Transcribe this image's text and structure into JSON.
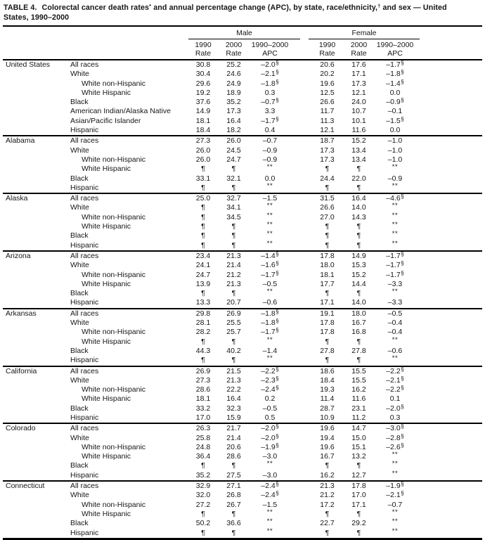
{
  "title": {
    "lines": [
      [
        {
          "t": "TABLE 4.",
          "label": true
        },
        {
          "t": "Colorectal cancer death rates"
        },
        {
          "t": "*",
          "sup": true
        },
        {
          "t": " and annual percentage change (APC), by state, race/ethnicity,"
        },
        {
          "t": "†",
          "sup": true
        },
        {
          "t": " and sex — United"
        }
      ],
      [
        {
          "t": "States, 1990–2000"
        }
      ]
    ]
  },
  "header": {
    "male": "Male",
    "female": "Female",
    "columns": [
      {
        "l1": "1990",
        "l2": "Rate"
      },
      {
        "l1": "2000",
        "l2": "Rate"
      },
      {
        "l1": "1990–2000",
        "l2": "APC"
      }
    ]
  },
  "symbols": {
    "suppressed_rate": "¶",
    "suppressed_apc": "**",
    "statistical_significance": "§"
  },
  "table": {
    "groups": [
      {
        "state": "United States",
        "rows": [
          {
            "label": "All races",
            "indent": 0,
            "values": [
              "30.8",
              "25.2",
              "–2.0§",
              "20.6",
              "17.6",
              "–1.7§"
            ]
          },
          {
            "label": "White",
            "indent": 0,
            "values": [
              "30.4",
              "24.6",
              "–2.1§",
              "20.2",
              "17.1",
              "–1.8§"
            ]
          },
          {
            "label": "White non-Hispanic",
            "indent": 1,
            "values": [
              "29.6",
              "24.9",
              "–1.8§",
              "19.6",
              "17.3",
              "–1.4§"
            ]
          },
          {
            "label": "White Hispanic",
            "indent": 1,
            "values": [
              "19.2",
              "18.9",
              "0.3",
              "12.5",
              "12.1",
              "0.0"
            ]
          },
          {
            "label": "Black",
            "indent": 0,
            "values": [
              "37.6",
              "35.2",
              "–0.7§",
              "26.6",
              "24.0",
              "–0.9§"
            ]
          },
          {
            "label": "American Indian/Alaska Native",
            "indent": 0,
            "values": [
              "14.9",
              "17.3",
              "3.3",
              "11.7",
              "10.7",
              "–0.1"
            ]
          },
          {
            "label": "Asian/Pacific Islander",
            "indent": 0,
            "values": [
              "18.1",
              "16.4",
              "–1.7§",
              "11.3",
              "10.1",
              "–1.5§"
            ]
          },
          {
            "label": "Hispanic",
            "indent": 0,
            "values": [
              "18.4",
              "18.2",
              "0.4",
              "12.1",
              "11.6",
              "0.0"
            ]
          }
        ]
      },
      {
        "state": "Alabama",
        "rows": [
          {
            "label": "All races",
            "indent": 0,
            "values": [
              "27.3",
              "26.0",
              "–0.7",
              "18.7",
              "15.2",
              "–1.0"
            ]
          },
          {
            "label": "White",
            "indent": 0,
            "values": [
              "26.0",
              "24.5",
              "–0.9",
              "17.3",
              "13.4",
              "–1.0"
            ]
          },
          {
            "label": "White non-Hispanic",
            "indent": 1,
            "values": [
              "26.0",
              "24.7",
              "–0.9",
              "17.3",
              "13.4",
              "–1.0"
            ]
          },
          {
            "label": "White Hispanic",
            "indent": 1,
            "values": [
              "¶",
              "¶",
              "**",
              "¶",
              "¶",
              "**"
            ]
          },
          {
            "label": "Black",
            "indent": 0,
            "values": [
              "33.1",
              "32.1",
              "0.0",
              "24.4",
              "22.0",
              "–0.9"
            ]
          },
          {
            "label": "Hispanic",
            "indent": 0,
            "values": [
              "¶",
              "¶",
              "**",
              "¶",
              "¶",
              "**"
            ]
          }
        ]
      },
      {
        "state": "Alaska",
        "rows": [
          {
            "label": "All races",
            "indent": 0,
            "values": [
              "25.0",
              "32.7",
              "–1.5",
              "31.5",
              "16.4",
              "–4.6§"
            ]
          },
          {
            "label": "White",
            "indent": 0,
            "values": [
              "¶",
              "34.1",
              "**",
              "26.6",
              "14.0",
              "**"
            ]
          },
          {
            "label": "White non-Hispanic",
            "indent": 1,
            "values": [
              "¶",
              "34.5",
              "**",
              "27.0",
              "14.3",
              "**"
            ]
          },
          {
            "label": "White Hispanic",
            "indent": 1,
            "values": [
              "¶",
              "¶",
              "**",
              "¶",
              "¶",
              "**"
            ]
          },
          {
            "label": "Black",
            "indent": 0,
            "values": [
              "¶",
              "¶",
              "**",
              "¶",
              "¶",
              "**"
            ]
          },
          {
            "label": "Hispanic",
            "indent": 0,
            "values": [
              "¶",
              "¶",
              "**",
              "¶",
              "¶",
              "**"
            ]
          }
        ]
      },
      {
        "state": "Arizona",
        "rows": [
          {
            "label": "All races",
            "indent": 0,
            "values": [
              "23.4",
              "21.3",
              "–1.4§",
              "17.8",
              "14.9",
              "–1.7§"
            ]
          },
          {
            "label": "White",
            "indent": 0,
            "values": [
              "24.1",
              "21.4",
              "–1.6§",
              "18.0",
              "15.3",
              "–1.7§"
            ]
          },
          {
            "label": "White non-Hispanic",
            "indent": 1,
            "values": [
              "24.7",
              "21.2",
              "–1.7§",
              "18.1",
              "15.2",
              "–1.7§"
            ]
          },
          {
            "label": "White Hispanic",
            "indent": 1,
            "values": [
              "13.9",
              "21.3",
              "–0.5",
              "17.7",
              "14.4",
              "–3.3"
            ]
          },
          {
            "label": "Black",
            "indent": 0,
            "values": [
              "¶",
              "¶",
              "**",
              "¶",
              "¶",
              "**"
            ]
          },
          {
            "label": "Hispanic",
            "indent": 0,
            "values": [
              "13.3",
              "20.7",
              "–0.6",
              "17.1",
              "14.0",
              "–3.3"
            ]
          }
        ]
      },
      {
        "state": "Arkansas",
        "rows": [
          {
            "label": "All races",
            "indent": 0,
            "values": [
              "29.8",
              "26.9",
              "–1.8§",
              "19.1",
              "18.0",
              "–0.5"
            ]
          },
          {
            "label": "White",
            "indent": 0,
            "values": [
              "28.1",
              "25.5",
              "–1.8§",
              "17.8",
              "16.7",
              "–0.4"
            ]
          },
          {
            "label": "White non-Hispanic",
            "indent": 1,
            "values": [
              "28.2",
              "25.7",
              "–1.7§",
              "17.8",
              "16.8",
              "–0.4"
            ]
          },
          {
            "label": "White Hispanic",
            "indent": 1,
            "values": [
              "¶",
              "¶",
              "**",
              "¶",
              "¶",
              "**"
            ]
          },
          {
            "label": "Black",
            "indent": 0,
            "values": [
              "44.3",
              "40.2",
              "–1.4",
              "27.8",
              "27.8",
              "–0.6"
            ]
          },
          {
            "label": "Hispanic",
            "indent": 0,
            "values": [
              "¶",
              "¶",
              "**",
              "¶",
              "¶",
              "**"
            ]
          }
        ]
      },
      {
        "state": "California",
        "rows": [
          {
            "label": "All races",
            "indent": 0,
            "values": [
              "26.9",
              "21.5",
              "–2.2§",
              "18.6",
              "15.5",
              "–2.2§"
            ]
          },
          {
            "label": "White",
            "indent": 0,
            "values": [
              "27.3",
              "21.3",
              "–2.3§",
              "18.4",
              "15.5",
              "–2.1§"
            ]
          },
          {
            "label": "White non-Hispanic",
            "indent": 1,
            "values": [
              "28.6",
              "22.2",
              "–2.4§",
              "19.3",
              "16.2",
              "–2.2§"
            ]
          },
          {
            "label": "White Hispanic",
            "indent": 1,
            "values": [
              "18.1",
              "16.4",
              "0.2",
              "11.4",
              "11.6",
              "0.1"
            ]
          },
          {
            "label": "Black",
            "indent": 0,
            "values": [
              "33.2",
              "32.3",
              "–0.5",
              "28.7",
              "23.1",
              "–2.0§"
            ]
          },
          {
            "label": "Hispanic",
            "indent": 0,
            "values": [
              "17.0",
              "15.9",
              "0.5",
              "10.9",
              "11.2",
              "0.3"
            ]
          }
        ]
      },
      {
        "state": "Colorado",
        "rows": [
          {
            "label": "All races",
            "indent": 0,
            "values": [
              "26.3",
              "21.7",
              "–2.0§",
              "19.6",
              "14.7",
              "–3.0§"
            ]
          },
          {
            "label": "White",
            "indent": 0,
            "values": [
              "25.8",
              "21.4",
              "–2.0§",
              "19.4",
              "15.0",
              "–2.8§"
            ]
          },
          {
            "label": "White non-Hispanic",
            "indent": 1,
            "values": [
              "24.8",
              "20.6",
              "–1.9§",
              "19.6",
              "15.1",
              "–2.6§"
            ]
          },
          {
            "label": "White Hispanic",
            "indent": 1,
            "values": [
              "36.4",
              "28.6",
              "–3.0",
              "16.7",
              "13.2",
              "**"
            ]
          },
          {
            "label": "Black",
            "indent": 0,
            "values": [
              "¶",
              "¶",
              "**",
              "¶",
              "¶",
              "**"
            ]
          },
          {
            "label": "Hispanic",
            "indent": 0,
            "values": [
              "35.2",
              "27.5",
              "–3.0",
              "16.2",
              "12.7",
              "**"
            ]
          }
        ]
      },
      {
        "state": "Connecticut",
        "rows": [
          {
            "label": "All races",
            "indent": 0,
            "values": [
              "32.9",
              "27.1",
              "–2.4§",
              "21.3",
              "17.8",
              "–1.9§"
            ]
          },
          {
            "label": "White",
            "indent": 0,
            "values": [
              "32.0",
              "26.8",
              "–2.4§",
              "21.2",
              "17.0",
              "–2.1§"
            ]
          },
          {
            "label": "White non-Hispanic",
            "indent": 1,
            "values": [
              "27.2",
              "26.7",
              "–1.5",
              "17.2",
              "17.1",
              "–0.7"
            ]
          },
          {
            "label": "White Hispanic",
            "indent": 1,
            "values": [
              "¶",
              "¶",
              "**",
              "¶",
              "¶",
              "**"
            ]
          },
          {
            "label": "Black",
            "indent": 0,
            "values": [
              "50.2",
              "36.6",
              "**",
              "22.7",
              "29.2",
              "**"
            ]
          },
          {
            "label": "Hispanic",
            "indent": 0,
            "values": [
              "¶",
              "¶",
              "**",
              "¶",
              "¶",
              "**"
            ]
          }
        ]
      }
    ]
  }
}
